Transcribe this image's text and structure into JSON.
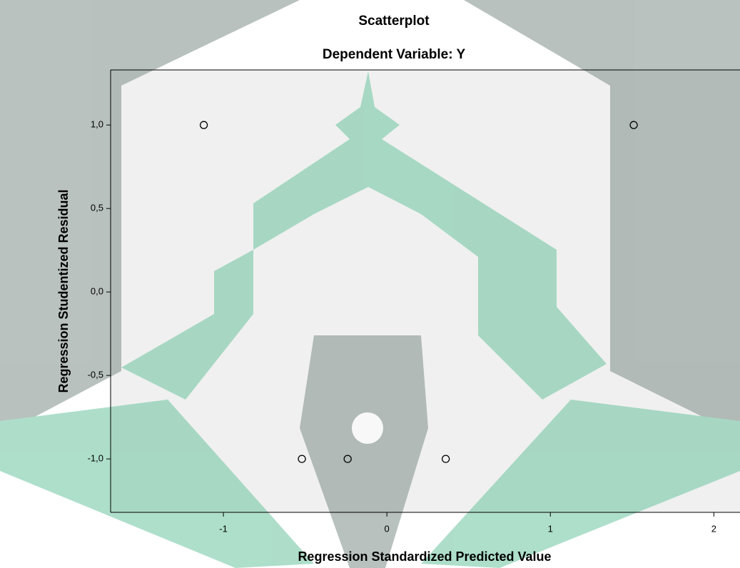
{
  "chart_data": {
    "type": "scatter",
    "title": "Scatterplot",
    "subtitle": "Dependent Variable: Y",
    "x_label": "Regression Standardized Predicted Value",
    "y_label": "Regression Studentized Residual",
    "x": [
      -1.12,
      1.51,
      -0.52,
      -0.24,
      0.36
    ],
    "values": [
      1.0,
      1.0,
      -1.0,
      -1.0,
      -1.0
    ],
    "color": "#000000",
    "xlim": [
      -1.69,
      2.16
    ],
    "ylim": [
      -1.32,
      1.33
    ],
    "xticks": [
      -1,
      0,
      1,
      2
    ],
    "yticks": [
      {
        "value": 1,
        "label": "1,0"
      },
      {
        "value": 0.5,
        "label": "0,5"
      },
      {
        "value": 0,
        "label": "0,0"
      },
      {
        "value": -0.5,
        "label": "-0,5"
      },
      {
        "value": -1,
        "label": "-1,0"
      }
    ]
  }
}
